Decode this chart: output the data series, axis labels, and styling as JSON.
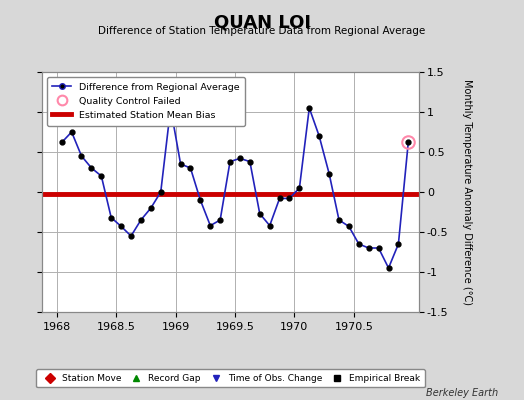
{
  "title": "QUAN LOI",
  "subtitle": "Difference of Station Temperature Data from Regional Average",
  "ylabel": "Monthly Temperature Anomaly Difference (°C)",
  "xlabel": "",
  "xlim": [
    1967.875,
    1971.05
  ],
  "ylim": [
    -1.5,
    1.5
  ],
  "xticks": [
    1968,
    1968.5,
    1969,
    1969.5,
    1970,
    1970.5
  ],
  "yticks": [
    -1.5,
    -1.0,
    -0.5,
    0,
    0.5,
    1.0,
    1.5
  ],
  "ytick_labels": [
    "-1.5",
    "-1",
    "-0.5",
    "0",
    "0.5",
    "1",
    "1.5"
  ],
  "bias_value": -0.03,
  "background_color": "#d8d8d8",
  "plot_bg_color": "#ffffff",
  "grid_color": "#b0b0b0",
  "line_color": "#2222bb",
  "marker_color": "#000000",
  "bias_color": "#cc0000",
  "qc_fail_color": "#ff88aa",
  "watermark": "Berkeley Earth",
  "x_data": [
    1968.042,
    1968.125,
    1968.208,
    1968.292,
    1968.375,
    1968.458,
    1968.542,
    1968.625,
    1968.708,
    1968.792,
    1968.875,
    1968.958,
    1969.042,
    1969.125,
    1969.208,
    1969.292,
    1969.375,
    1969.458,
    1969.542,
    1969.625,
    1969.708,
    1969.792,
    1969.875,
    1969.958,
    1970.042,
    1970.125,
    1970.208,
    1970.292,
    1970.375,
    1970.458,
    1970.542,
    1970.625,
    1970.708,
    1970.792,
    1970.875,
    1970.958
  ],
  "y_data": [
    0.62,
    0.75,
    0.45,
    0.3,
    0.2,
    -0.32,
    -0.43,
    -0.55,
    -0.35,
    -0.2,
    0.0,
    1.05,
    0.35,
    0.3,
    -0.1,
    -0.42,
    -0.35,
    0.38,
    0.42,
    0.38,
    -0.27,
    -0.42,
    -0.08,
    -0.08,
    0.05,
    1.05,
    0.7,
    0.23,
    -0.35,
    -0.43,
    -0.65,
    -0.7,
    -0.7,
    -0.95,
    -0.65,
    0.62
  ],
  "qc_fail_indices": [
    35
  ],
  "legend_items": [
    {
      "label": "Difference from Regional Average",
      "color": "#2222bb",
      "type": "line_marker"
    },
    {
      "label": "Quality Control Failed",
      "color": "#ff88aa",
      "type": "circle"
    },
    {
      "label": "Estimated Station Mean Bias",
      "color": "#cc0000",
      "type": "line"
    }
  ],
  "bottom_legend_items": [
    {
      "label": "Station Move",
      "color": "#cc0000",
      "marker": "D"
    },
    {
      "label": "Record Gap",
      "color": "#008800",
      "marker": "^"
    },
    {
      "label": "Time of Obs. Change",
      "color": "#2222bb",
      "marker": "v"
    },
    {
      "label": "Empirical Break",
      "color": "#000000",
      "marker": "s"
    }
  ]
}
